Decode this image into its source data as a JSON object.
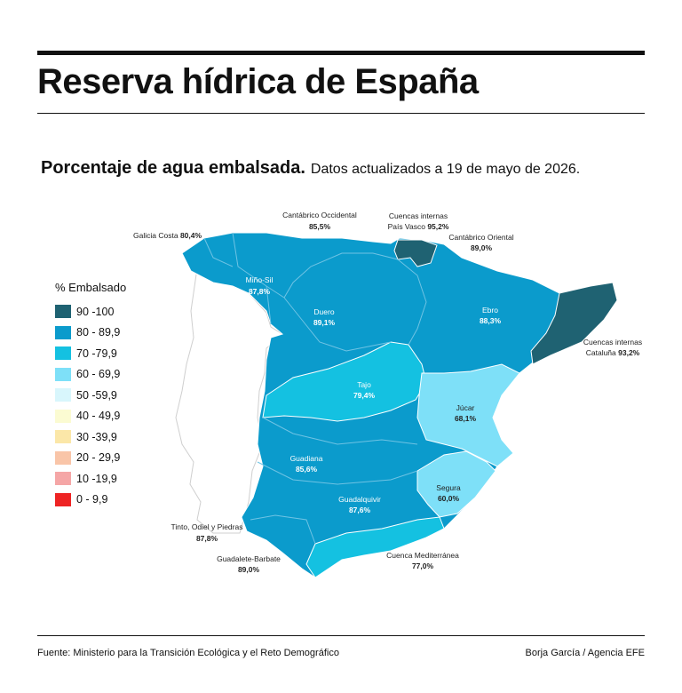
{
  "title": "Reserva hídrica de España",
  "subtitle_strong": "Porcentaje de agua embalsada.",
  "subtitle_light": "Datos actualizados a 19 de mayo de 2026.",
  "legend": {
    "title": "% Embalsado",
    "items": [
      {
        "label": "90 -100",
        "color": "#1f6272"
      },
      {
        "label": "80 - 89,9",
        "color": "#0b9bcc"
      },
      {
        "label": "70 -79,9",
        "color": "#14c1e1"
      },
      {
        "label": "60 - 69,9",
        "color": "#7ee0f8"
      },
      {
        "label": "50 -59,9",
        "color": "#d8f6fc"
      },
      {
        "label": "40 - 49,9",
        "color": "#fbfbd2"
      },
      {
        "label": "30 -39,9",
        "color": "#fbe7a8"
      },
      {
        "label": "20 - 29,9",
        "color": "#f9c5a8"
      },
      {
        "label": "10 -19,9",
        "color": "#f5a6a6"
      },
      {
        "label": "0 - 9,9",
        "color": "#ee2424"
      }
    ]
  },
  "basins": [
    {
      "name": "Galicia Costa",
      "value": "80,4%"
    },
    {
      "name": "Cantábrico Occidental",
      "value": "85,5%"
    },
    {
      "name": "Cuencas internas",
      "name2": "País Vasco",
      "value": "95,2%"
    },
    {
      "name": "Cantábrico Oriental",
      "value": "89,0%"
    },
    {
      "name": "Miño-Sil",
      "value": "87,8%"
    },
    {
      "name": "Duero",
      "value": "89,1%"
    },
    {
      "name": "Ebro",
      "value": "88,3%"
    },
    {
      "name": "Cuencas internas",
      "name2": "Cataluña",
      "value": "93,2%"
    },
    {
      "name": "Tajo",
      "value": "79,4%"
    },
    {
      "name": "Júcar",
      "value": "68,1%"
    },
    {
      "name": "Guadiana",
      "value": "85,6%"
    },
    {
      "name": "Segura",
      "value": "60,0%"
    },
    {
      "name": "Guadalquivir",
      "value": "87,6%"
    },
    {
      "name": "Tinto, Odiel y Piedras",
      "value": "87,8%"
    },
    {
      "name": "Guadalete-Barbate",
      "value": "89,0%"
    },
    {
      "name": "Cuenca Mediterránea",
      "value": "77,0%"
    }
  ],
  "footer": {
    "source": "Fuente: Ministerio para la Transición Ecológica y el Reto Demográfico",
    "credit": "Borja García / Agencia EFE"
  }
}
